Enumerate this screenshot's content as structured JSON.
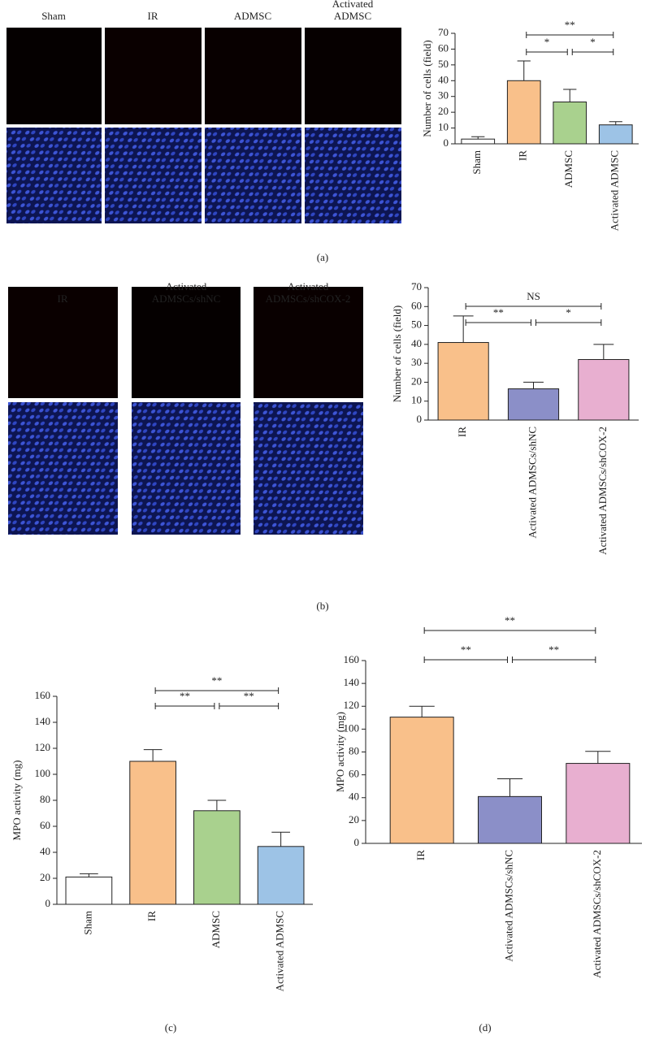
{
  "panel_a_images": {
    "labels": [
      "Sham",
      "IR",
      "ADMSC",
      "Activated ADMSC"
    ]
  },
  "panel_b_images": {
    "labels": [
      "IR",
      "Activated ADMSCs/shNC",
      "Activated ADMSCs/shCOX-2"
    ]
  },
  "panel_labels": [
    "(a)",
    "(b)",
    "(c)",
    "(d)"
  ],
  "chart_data": [
    {
      "type": "bar",
      "y_label": "Number of cells (field)",
      "categories": [
        "Sham",
        "IR",
        "ADMSC",
        "Activated ADMSC"
      ],
      "values": [
        3,
        40,
        26.5,
        12
      ],
      "errors": [
        1.5,
        12.5,
        8,
        2
      ],
      "colors": [
        "#ffffff",
        "#f9c08a",
        "#a9d18e",
        "#9dc3e6"
      ],
      "ylim": [
        0,
        70
      ],
      "yticks": [
        0,
        10,
        20,
        30,
        40,
        50,
        60,
        70
      ],
      "annotations": [
        {
          "text": "*",
          "from": "IR",
          "to": "ADMSC"
        },
        {
          "text": "*",
          "from": "ADMSC",
          "to": "Activated ADMSC"
        },
        {
          "text": "**",
          "from": "IR",
          "to": "Activated ADMSC"
        }
      ]
    },
    {
      "type": "bar",
      "y_label": "Number of cells (field)",
      "categories": [
        "IR",
        "Activated ADMSCs/shNC",
        "Activated ADMSCs/shCOX-2"
      ],
      "values": [
        41,
        16.5,
        32
      ],
      "errors": [
        14,
        3.5,
        8
      ],
      "colors": [
        "#f9c08a",
        "#8b8fc8",
        "#e8afd0"
      ],
      "ylim": [
        0,
        70
      ],
      "yticks": [
        0,
        10,
        20,
        30,
        40,
        50,
        60,
        70
      ],
      "annotations": [
        {
          "text": "**",
          "from": "IR",
          "to": "Activated ADMSCs/shNC"
        },
        {
          "text": "*",
          "from": "Activated ADMSCs/shNC",
          "to": "Activated ADMSCs/shCOX-2"
        },
        {
          "text": "NS",
          "from": "IR",
          "to": "Activated ADMSCs/shCOX-2"
        }
      ]
    },
    {
      "type": "bar",
      "y_label": "MPO activity (mg)",
      "categories": [
        "Sham",
        "IR",
        "ADMSC",
        "Activated ADMSC"
      ],
      "values": [
        21,
        110,
        72,
        44.5
      ],
      "errors": [
        2.5,
        9,
        8,
        11
      ],
      "colors": [
        "#ffffff",
        "#f9c08a",
        "#a9d18e",
        "#9dc3e6"
      ],
      "ylim": [
        0,
        160
      ],
      "yticks": [
        0,
        20,
        40,
        60,
        80,
        100,
        120,
        140,
        160
      ],
      "annotations": [
        {
          "text": "**",
          "from": "IR",
          "to": "ADMSC"
        },
        {
          "text": "**",
          "from": "ADMSC",
          "to": "Activated ADMSC"
        },
        {
          "text": "**",
          "from": "IR",
          "to": "Activated ADMSC"
        }
      ]
    },
    {
      "type": "bar",
      "y_label": "MPO activity (mg)",
      "categories": [
        "IR",
        "Activated ADMSCs/shNC",
        "Activated ADMSCs/shCOX-2"
      ],
      "values": [
        110.5,
        41,
        70
      ],
      "errors": [
        9.5,
        15.5,
        10.5
      ],
      "colors": [
        "#f9c08a",
        "#8b8fc8",
        "#e8afd0"
      ],
      "ylim": [
        0,
        160
      ],
      "yticks": [
        0,
        20,
        40,
        60,
        80,
        100,
        120,
        140,
        160
      ],
      "annotations": [
        {
          "text": "**",
          "from": "IR",
          "to": "Activated ADMSCs/shNC"
        },
        {
          "text": "**",
          "from": "Activated ADMSCs/shNC",
          "to": "Activated ADMSCs/shCOX-2"
        },
        {
          "text": "**",
          "from": "IR",
          "to": "Activated ADMSCs/shCOX-2"
        }
      ]
    }
  ]
}
